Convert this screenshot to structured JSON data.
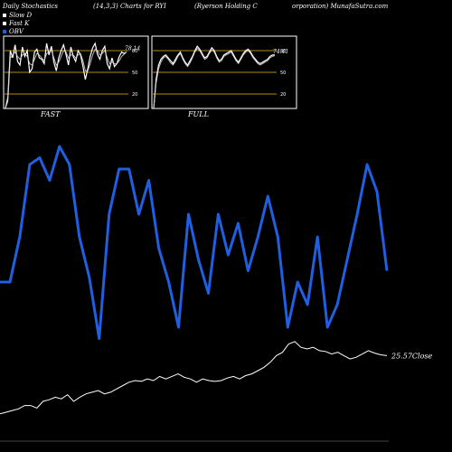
{
  "header": {
    "left": "Daily Stochastics",
    "params": "(14,3,3) Charts for RYI",
    "company": "(Ryerson Holding C",
    "source": "orporation) MunafaSutra.com"
  },
  "legend": {
    "items": [
      {
        "label": "Slow D",
        "color": "#ffffff"
      },
      {
        "label": "Fast K",
        "color": "#ffffff"
      },
      {
        "label": "OBV",
        "color": "#1f5fe0"
      }
    ]
  },
  "chart_data": [
    {
      "type": "line",
      "panel": "FAST",
      "title": "FAST",
      "yticks": [
        80,
        50,
        20
      ],
      "ylim": [
        0,
        100
      ],
      "last_value_label": "78.14",
      "series": [
        {
          "values": [
            0,
            15,
            80,
            70,
            88,
            65,
            60,
            85,
            72,
            80,
            50,
            55,
            78,
            82,
            70,
            68,
            62,
            90,
            74,
            86,
            64,
            52,
            70,
            80,
            88,
            75,
            60,
            85,
            72,
            65,
            80,
            74,
            58,
            40,
            55,
            72,
            84,
            90,
            75,
            68,
            80,
            86,
            62,
            55,
            70,
            58,
            62,
            72,
            78,
            76,
            78
          ]
        },
        {
          "values": [
            0,
            10,
            70,
            74,
            78,
            72,
            68,
            74,
            76,
            72,
            62,
            60,
            68,
            76,
            74,
            70,
            66,
            76,
            78,
            80,
            70,
            60,
            64,
            72,
            80,
            78,
            70,
            74,
            74,
            70,
            74,
            76,
            66,
            52,
            52,
            62,
            74,
            82,
            80,
            74,
            76,
            80,
            70,
            62,
            64,
            62,
            62,
            66,
            72,
            75,
            78
          ]
        }
      ]
    },
    {
      "type": "line",
      "panel": "FULL",
      "title": "FULL",
      "yticks": [
        80,
        50,
        20
      ],
      "ylim": [
        0,
        100
      ],
      "last_value_label": "74.41",
      "series": [
        {
          "values": [
            0,
            40,
            60,
            68,
            72,
            74,
            70,
            66,
            62,
            68,
            74,
            78,
            70,
            64,
            60,
            66,
            72,
            80,
            86,
            82,
            76,
            70,
            72,
            78,
            84,
            80,
            72,
            66,
            68,
            74,
            76,
            78,
            80,
            74,
            68,
            64,
            70,
            76,
            80,
            82,
            78,
            72,
            68,
            64,
            62,
            64,
            66,
            68,
            72,
            74,
            74
          ]
        },
        {
          "values": [
            0,
            35,
            55,
            64,
            70,
            72,
            68,
            63,
            60,
            65,
            72,
            76,
            68,
            62,
            58,
            63,
            70,
            78,
            83,
            80,
            74,
            68,
            70,
            76,
            81,
            78,
            70,
            64,
            66,
            72,
            74,
            76,
            78,
            72,
            66,
            62,
            68,
            74,
            78,
            80,
            76,
            70,
            66,
            62,
            60,
            62,
            64,
            66,
            70,
            72,
            73
          ]
        }
      ]
    },
    {
      "type": "line",
      "panel": "price",
      "close_label": "25.57Close",
      "series": [
        {
          "name": "OBV",
          "color": "#1f5fe0",
          "values": [
            0.4,
            0.4,
            0.6,
            0.92,
            0.95,
            0.85,
            1.0,
            0.92,
            0.6,
            0.42,
            0.15,
            0.7,
            0.9,
            0.9,
            0.7,
            0.85,
            0.55,
            0.4,
            0.2,
            0.7,
            0.5,
            0.35,
            0.7,
            0.52,
            0.66,
            0.45,
            0.6,
            0.78,
            0.6,
            0.2,
            0.4,
            0.3,
            0.6,
            0.2,
            0.3,
            0.5,
            0.7,
            0.92,
            0.8,
            0.45
          ]
        },
        {
          "name": "Close",
          "color": "#ffffff",
          "values": [
            0.1,
            0.12,
            0.14,
            0.16,
            0.2,
            0.2,
            0.17,
            0.25,
            0.27,
            0.3,
            0.28,
            0.33,
            0.25,
            0.3,
            0.34,
            0.36,
            0.38,
            0.34,
            0.36,
            0.4,
            0.44,
            0.48,
            0.5,
            0.49,
            0.52,
            0.5,
            0.55,
            0.52,
            0.55,
            0.58,
            0.54,
            0.52,
            0.48,
            0.52,
            0.5,
            0.49,
            0.5,
            0.53,
            0.55,
            0.52,
            0.56,
            0.58,
            0.62,
            0.66,
            0.72,
            0.8,
            0.84,
            0.94,
            0.97,
            0.9,
            0.88,
            0.9,
            0.86,
            0.85,
            0.82,
            0.84,
            0.8,
            0.76,
            0.78,
            0.82,
            0.86,
            0.83,
            0.81,
            0.8
          ]
        }
      ]
    }
  ]
}
